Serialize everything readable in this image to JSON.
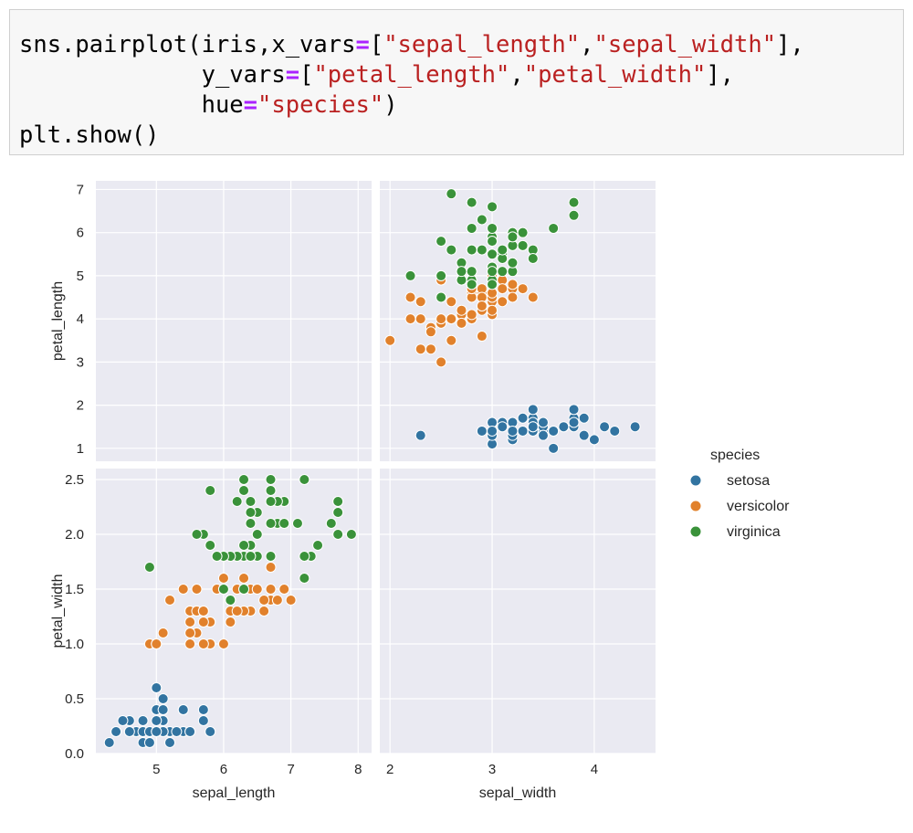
{
  "code": {
    "line1": {
      "a": "sns.pairplot(iris,x_vars",
      "op": "=",
      "b": "[",
      "s1": "\"sepal_length\"",
      "c": ",",
      "s2": "\"sepal_width\"",
      "d": "],"
    },
    "line2": {
      "indent": "             ",
      "a": "y_vars",
      "op": "=",
      "b": "[",
      "s1": "\"petal_length\"",
      "c": ",",
      "s2": "\"petal_width\"",
      "d": "],"
    },
    "line3": {
      "indent": "             ",
      "a": "hue",
      "op": "=",
      "s1": "\"species\"",
      "d": ")"
    },
    "line4": {
      "a": "plt.show()"
    }
  },
  "colors": {
    "setosa": "#3274a1",
    "versicolor": "#e1812c",
    "virginica": "#3a923a",
    "panel_bg": "#eaeaf2",
    "grid": "#ffffff"
  },
  "chart_data": {
    "type": "scatter",
    "style": "seaborn darkgrid pairplot",
    "x_vars": [
      "sepal_length",
      "sepal_width"
    ],
    "y_vars": [
      "petal_length",
      "petal_width"
    ],
    "hue": "species",
    "legend": {
      "title": "species",
      "entries": [
        "setosa",
        "versicolor",
        "virginica"
      ],
      "placement": "right"
    },
    "axes": {
      "sepal_length": {
        "label": "sepal_length",
        "lim": [
          4.1,
          8.2
        ],
        "ticks": [
          5,
          6,
          7,
          8
        ],
        "tick_labels": [
          "5",
          "6",
          "7",
          "8"
        ]
      },
      "sepal_width": {
        "label": "sepal_width",
        "lim": [
          1.9,
          4.6
        ],
        "ticks": [
          2,
          3,
          4
        ],
        "tick_labels": [
          "2",
          "3",
          "4"
        ]
      },
      "petal_length": {
        "label": "petal_length",
        "lim": [
          0.7,
          7.2
        ],
        "ticks": [
          1,
          2,
          3,
          4,
          5,
          6,
          7
        ],
        "tick_labels": [
          "1",
          "2",
          "3",
          "4",
          "5",
          "6",
          "7"
        ]
      },
      "petal_width": {
        "label": "petal_width",
        "lim": [
          0.0,
          2.6
        ],
        "ticks": [
          0.0,
          0.5,
          1.0,
          1.5,
          2.0,
          2.5
        ],
        "tick_labels": [
          "0.0",
          "0.5",
          "1.0",
          "1.5",
          "2.0",
          "2.5"
        ]
      }
    },
    "series": [
      {
        "name": "setosa",
        "sepal_width": [
          3.5,
          3.0,
          3.2,
          3.1,
          3.6,
          3.9,
          3.4,
          3.4,
          2.9,
          3.1,
          3.7,
          3.4,
          3.0,
          3.0,
          4.0,
          4.4,
          3.9,
          3.5,
          3.8,
          3.8,
          3.4,
          3.7,
          3.6,
          3.3,
          3.4,
          3.0,
          3.4,
          3.5,
          3.4,
          3.2,
          3.1,
          3.4,
          4.1,
          4.2,
          3.1,
          3.2,
          3.5,
          3.6,
          3.0,
          3.4,
          3.5,
          2.3,
          3.2,
          3.5,
          3.8,
          3.0,
          3.8,
          3.2,
          3.7,
          3.3
        ],
        "petal_length": [
          1.4,
          1.4,
          1.3,
          1.5,
          1.4,
          1.7,
          1.4,
          1.5,
          1.4,
          1.5,
          1.5,
          1.6,
          1.4,
          1.1,
          1.2,
          1.5,
          1.3,
          1.4,
          1.7,
          1.5,
          1.7,
          1.5,
          1.0,
          1.7,
          1.9,
          1.6,
          1.6,
          1.5,
          1.4,
          1.6,
          1.6,
          1.5,
          1.5,
          1.4,
          1.5,
          1.2,
          1.3,
          1.4,
          1.3,
          1.5,
          1.3,
          1.3,
          1.3,
          1.6,
          1.9,
          1.4,
          1.6,
          1.4,
          1.5,
          1.4
        ],
        "sepal_length": [
          5.1,
          4.9,
          4.7,
          4.6,
          5.0,
          5.4,
          4.6,
          5.0,
          4.4,
          4.9,
          5.4,
          4.8,
          4.8,
          4.3,
          5.8,
          5.7,
          5.4,
          5.1,
          5.7,
          5.1,
          5.4,
          5.1,
          4.6,
          5.1,
          4.8,
          5.0,
          5.0,
          5.2,
          5.2,
          4.7,
          4.8,
          5.4,
          5.2,
          5.5,
          4.9,
          5.0,
          5.5,
          4.9,
          4.4,
          5.1,
          5.0,
          4.5,
          4.4,
          5.0,
          5.1,
          4.8,
          5.1,
          4.6,
          5.3,
          5.0
        ],
        "petal_width": [
          0.2,
          0.2,
          0.2,
          0.2,
          0.2,
          0.4,
          0.3,
          0.2,
          0.2,
          0.1,
          0.2,
          0.2,
          0.1,
          0.1,
          0.2,
          0.4,
          0.4,
          0.3,
          0.3,
          0.3,
          0.2,
          0.4,
          0.2,
          0.5,
          0.2,
          0.2,
          0.4,
          0.2,
          0.2,
          0.2,
          0.2,
          0.4,
          0.1,
          0.2,
          0.2,
          0.2,
          0.2,
          0.1,
          0.2,
          0.2,
          0.3,
          0.3,
          0.2,
          0.6,
          0.4,
          0.3,
          0.2,
          0.2,
          0.2,
          0.2
        ]
      },
      {
        "name": "versicolor",
        "sepal_width": [
          3.2,
          3.2,
          3.1,
          2.3,
          2.8,
          2.8,
          3.3,
          2.4,
          2.9,
          2.7,
          2.0,
          3.0,
          2.2,
          2.9,
          2.9,
          3.1,
          3.0,
          2.7,
          2.2,
          2.5,
          3.2,
          2.8,
          2.5,
          2.8,
          2.9,
          3.0,
          2.8,
          3.0,
          2.9,
          2.6,
          2.4,
          2.4,
          2.7,
          2.7,
          3.0,
          3.4,
          3.1,
          2.3,
          3.0,
          2.5,
          2.6,
          3.0,
          2.6,
          2.3,
          2.7,
          3.0,
          2.9,
          2.9,
          2.5,
          2.8
        ],
        "petal_length": [
          4.7,
          4.5,
          4.9,
          4.0,
          4.6,
          4.5,
          4.7,
          3.3,
          4.6,
          3.9,
          3.5,
          4.2,
          4.0,
          4.7,
          3.6,
          4.4,
          4.5,
          4.1,
          4.5,
          3.9,
          4.8,
          4.0,
          4.9,
          4.7,
          4.3,
          4.4,
          4.8,
          5.0,
          4.5,
          3.5,
          3.8,
          3.7,
          3.9,
          5.1,
          4.5,
          4.5,
          4.7,
          4.4,
          4.1,
          4.0,
          4.4,
          4.6,
          4.0,
          3.3,
          4.2,
          4.2,
          4.2,
          4.3,
          3.0,
          4.1
        ],
        "sepal_length": [
          7.0,
          6.4,
          6.9,
          5.5,
          6.5,
          5.7,
          6.3,
          4.9,
          6.6,
          5.2,
          5.0,
          5.9,
          6.0,
          6.1,
          5.6,
          6.7,
          5.6,
          5.8,
          6.2,
          5.6,
          5.9,
          6.1,
          6.3,
          6.1,
          6.4,
          6.6,
          6.8,
          6.7,
          6.0,
          5.7,
          5.5,
          5.5,
          5.8,
          6.0,
          5.4,
          6.0,
          6.7,
          6.3,
          5.6,
          5.5,
          5.5,
          6.1,
          5.8,
          5.0,
          5.6,
          5.7,
          5.7,
          6.2,
          5.1,
          5.7
        ],
        "petal_width": [
          1.4,
          1.5,
          1.5,
          1.3,
          1.5,
          1.3,
          1.6,
          1.0,
          1.3,
          1.4,
          1.0,
          1.5,
          1.0,
          1.4,
          1.3,
          1.4,
          1.5,
          1.0,
          1.5,
          1.1,
          1.8,
          1.3,
          1.5,
          1.2,
          1.3,
          1.4,
          1.4,
          1.7,
          1.5,
          1.0,
          1.1,
          1.0,
          1.2,
          1.6,
          1.5,
          1.6,
          1.5,
          1.3,
          1.3,
          1.3,
          1.2,
          1.4,
          1.2,
          1.0,
          1.3,
          1.2,
          1.3,
          1.3,
          1.1,
          1.3
        ]
      },
      {
        "name": "virginica",
        "sepal_width": [
          3.3,
          2.7,
          3.0,
          2.9,
          3.0,
          3.0,
          2.5,
          2.9,
          2.5,
          3.6,
          3.2,
          2.7,
          3.0,
          2.5,
          2.8,
          3.2,
          3.0,
          3.8,
          2.6,
          2.2,
          3.2,
          2.8,
          2.8,
          2.7,
          3.3,
          3.2,
          2.8,
          3.0,
          2.8,
          3.0,
          2.8,
          3.8,
          2.8,
          2.8,
          2.6,
          3.0,
          3.4,
          3.1,
          3.0,
          3.1,
          3.1,
          3.1,
          2.7,
          3.2,
          3.3,
          3.0,
          2.5,
          3.0,
          3.4,
          3.0
        ],
        "petal_length": [
          6.0,
          5.1,
          5.9,
          5.6,
          5.8,
          6.6,
          4.5,
          6.3,
          5.8,
          6.1,
          5.1,
          5.3,
          5.5,
          5.0,
          5.1,
          5.3,
          5.5,
          6.7,
          6.9,
          5.0,
          5.7,
          4.9,
          6.7,
          4.9,
          5.7,
          6.0,
          4.8,
          4.9,
          5.6,
          5.8,
          6.1,
          6.4,
          5.6,
          5.1,
          5.6,
          6.1,
          5.6,
          5.5,
          4.8,
          5.4,
          5.6,
          5.1,
          5.1,
          5.9,
          5.7,
          5.2,
          5.0,
          5.2,
          5.4,
          5.1
        ],
        "sepal_length": [
          6.3,
          5.8,
          7.1,
          6.3,
          6.5,
          7.6,
          4.9,
          7.3,
          6.7,
          7.2,
          6.5,
          6.4,
          6.8,
          5.7,
          5.8,
          6.4,
          6.5,
          7.7,
          7.7,
          6.0,
          6.9,
          5.6,
          7.7,
          6.3,
          6.7,
          7.2,
          6.2,
          6.1,
          6.4,
          7.2,
          7.4,
          7.9,
          6.4,
          6.3,
          6.1,
          7.7,
          6.3,
          6.4,
          6.0,
          6.9,
          6.7,
          6.9,
          5.8,
          6.8,
          6.7,
          6.7,
          6.3,
          6.5,
          6.2,
          5.9
        ],
        "petal_width": [
          2.5,
          1.9,
          2.1,
          1.8,
          2.2,
          2.1,
          1.7,
          1.8,
          1.8,
          2.5,
          2.0,
          1.9,
          2.1,
          2.0,
          2.4,
          2.3,
          1.8,
          2.2,
          2.3,
          1.5,
          2.3,
          2.0,
          2.0,
          1.8,
          2.1,
          1.8,
          1.8,
          1.8,
          2.1,
          1.6,
          1.9,
          2.0,
          2.2,
          1.5,
          1.4,
          2.3,
          2.4,
          1.8,
          1.8,
          2.1,
          2.4,
          2.3,
          1.9,
          2.3,
          2.5,
          2.3,
          1.9,
          2.0,
          2.3,
          1.8
        ]
      }
    ]
  }
}
